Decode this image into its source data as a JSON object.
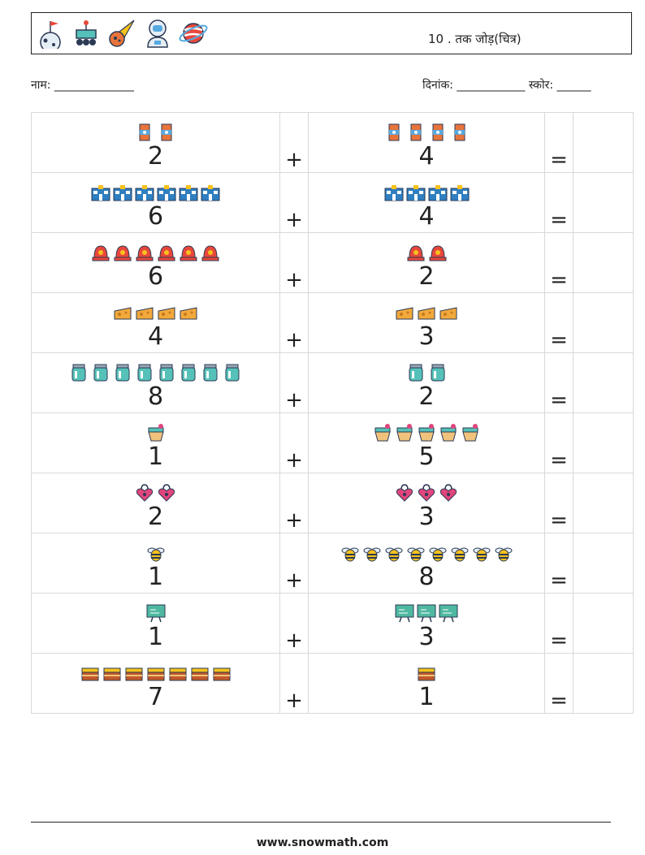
{
  "header": {
    "title": "10 . तक जोड़(चित्र)",
    "icons": [
      "moon-flag-icon",
      "rover-icon",
      "comet-icon",
      "astronaut-icon",
      "planet-icon"
    ]
  },
  "info": {
    "name_label": "नाम: ______________",
    "date_score": "दिनांक: ____________  स्कोर: ______"
  },
  "symbols": {
    "plus": "+",
    "equals": "="
  },
  "rows": [
    {
      "a": "2",
      "b": "4",
      "icon": "juice-carton-icon",
      "color": "#e8743b"
    },
    {
      "a": "6",
      "b": "4",
      "icon": "building-icon",
      "color": "#2f7fc1"
    },
    {
      "a": "6",
      "b": "2",
      "icon": "siren-icon",
      "color": "#e8473b"
    },
    {
      "a": "4",
      "b": "3",
      "icon": "cheese-icon",
      "color": "#f2a93b"
    },
    {
      "a": "8",
      "b": "2",
      "icon": "jar-icon",
      "color": "#56c1b8"
    },
    {
      "a": "1",
      "b": "5",
      "icon": "basket-icon",
      "color": "#f0c27b"
    },
    {
      "a": "2",
      "b": "3",
      "icon": "heart-lock-icon",
      "color": "#e0457b"
    },
    {
      "a": "1",
      "b": "8",
      "icon": "bee-icon",
      "color": "#f6c21c"
    },
    {
      "a": "1",
      "b": "3",
      "icon": "chalkboard-icon",
      "color": "#4fb8a0"
    },
    {
      "a": "7",
      "b": "1",
      "icon": "cake-icon",
      "color": "#c0592b"
    }
  ],
  "footer": {
    "url": "www.snowmath.com"
  }
}
